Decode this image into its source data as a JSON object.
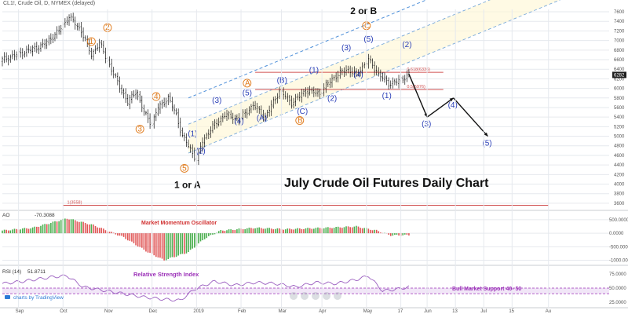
{
  "header": {
    "title": "CL1!, Crude Oil, D, NYMEX (delayed)"
  },
  "chart_data": [
    {
      "type": "candlestick",
      "title": "July Crude Oil Futures Daily Chart",
      "x_ticks": [
        "Sep",
        "Oct",
        "Nov",
        "Dec",
        "2019",
        "Feb",
        "Mar",
        "Apr",
        "May",
        "17",
        "Jun",
        "13",
        "Jul",
        "15",
        "Au"
      ],
      "y_ticks": [
        7600,
        7400,
        7200,
        7000,
        6800,
        6600,
        6400,
        6200,
        6000,
        5800,
        5600,
        5400,
        5200,
        5000,
        4800,
        4600,
        4400,
        4200,
        4000,
        3800,
        3600
      ],
      "ylim": [
        3500,
        7650
      ],
      "last_price": "6282",
      "anchors": [
        {
          "t": 0,
          "v": 6600
        },
        {
          "t": 10,
          "v": 6750
        },
        {
          "t": 20,
          "v": 6900
        },
        {
          "t": 28,
          "v": 7200
        },
        {
          "t": 33,
          "v": 7500
        },
        {
          "t": 39,
          "v": 7200
        },
        {
          "t": 44,
          "v": 6700
        },
        {
          "t": 48,
          "v": 6950
        },
        {
          "t": 55,
          "v": 6300
        },
        {
          "t": 62,
          "v": 5700
        },
        {
          "t": 66,
          "v": 5950
        },
        {
          "t": 70,
          "v": 5500
        },
        {
          "t": 74,
          "v": 5250
        },
        {
          "t": 77,
          "v": 5600
        },
        {
          "t": 82,
          "v": 5800
        },
        {
          "t": 86,
          "v": 5450
        },
        {
          "t": 89,
          "v": 5000
        },
        {
          "t": 92,
          "v": 4800
        },
        {
          "t": 96,
          "v": 4500
        },
        {
          "t": 99,
          "v": 4900
        },
        {
          "t": 104,
          "v": 5200
        },
        {
          "t": 110,
          "v": 5450
        },
        {
          "t": 117,
          "v": 5350
        },
        {
          "t": 124,
          "v": 5650
        },
        {
          "t": 130,
          "v": 5400
        },
        {
          "t": 137,
          "v": 5950
        },
        {
          "t": 143,
          "v": 5700
        },
        {
          "t": 150,
          "v": 5950
        },
        {
          "t": 157,
          "v": 5900
        },
        {
          "t": 163,
          "v": 6200
        },
        {
          "t": 170,
          "v": 6400
        },
        {
          "t": 175,
          "v": 6300
        },
        {
          "t": 181,
          "v": 6600
        },
        {
          "t": 186,
          "v": 6300
        },
        {
          "t": 191,
          "v": 6100
        },
        {
          "t": 196,
          "v": 6150
        },
        {
          "t": 201,
          "v": 6300
        }
      ],
      "fib_levels": [
        {
          "label": "0.618(6336)",
          "value": 6336
        },
        {
          "label": "0.5(5976)",
          "value": 5976
        },
        {
          "label": "1(3558)",
          "value": 3558
        }
      ],
      "projection": [
        {
          "t": 201,
          "v": 6300,
          "label": ""
        },
        {
          "t": 210,
          "v": 5400,
          "label": "(3)"
        },
        {
          "t": 223,
          "v": 5800,
          "label": "(4)"
        },
        {
          "t": 240,
          "v": 5000,
          "label": "(5)"
        }
      ],
      "annotations": {
        "orange": [
          {
            "t": 44,
            "v": 6930,
            "text": "1"
          },
          {
            "t": 52,
            "v": 7220,
            "text": "2"
          },
          {
            "t": 68,
            "v": 5100,
            "text": "3"
          },
          {
            "t": 76,
            "v": 5780,
            "text": "4"
          },
          {
            "t": 90,
            "v": 4280,
            "text": "5"
          },
          {
            "t": 121,
            "v": 6060,
            "text": "A"
          },
          {
            "t": 147,
            "v": 5280,
            "text": "B"
          },
          {
            "t": 180,
            "v": 7260,
            "text": "C"
          }
        ],
        "blue": [
          {
            "t": 94,
            "v": 5000,
            "text": "(1)"
          },
          {
            "t": 98,
            "v": 4640,
            "text": "(2)"
          },
          {
            "t": 106,
            "v": 5700,
            "text": "(3)"
          },
          {
            "t": 117,
            "v": 5260,
            "text": "(4)"
          },
          {
            "t": 121,
            "v": 5850,
            "text": "(5)"
          },
          {
            "t": 128,
            "v": 5330,
            "text": "(A)"
          },
          {
            "t": 138,
            "v": 6120,
            "text": "(B)"
          },
          {
            "t": 148,
            "v": 5470,
            "text": "(C)"
          },
          {
            "t": 154,
            "v": 6330,
            "text": "(1)"
          },
          {
            "t": 163,
            "v": 5740,
            "text": "(2)"
          },
          {
            "t": 170,
            "v": 6800,
            "text": "(3)"
          },
          {
            "t": 176,
            "v": 6230,
            "text": "(4)"
          },
          {
            "t": 181,
            "v": 6980,
            "text": "(5)"
          },
          {
            "t": 190,
            "v": 5800,
            "text": "(1)"
          },
          {
            "t": 200,
            "v": 6860,
            "text": "(2)"
          }
        ],
        "labels": [
          {
            "t": 92,
            "v": 3920,
            "text": "1 or A"
          },
          {
            "t": 179,
            "v": 7550,
            "text": "2 or B"
          }
        ]
      }
    },
    {
      "type": "bar",
      "title": "AO",
      "value_label": "-70.3088",
      "subtitle": "Market Momentum Oscillator",
      "y_ticks": [
        "500.0000",
        "0.0000",
        "-500.0000",
        "-1000.0000"
      ],
      "ylim": [
        -1100,
        700
      ],
      "anchors": [
        {
          "t": 0,
          "v": 100
        },
        {
          "t": 15,
          "v": 200
        },
        {
          "t": 32,
          "v": 550
        },
        {
          "t": 45,
          "v": 300
        },
        {
          "t": 60,
          "v": -150
        },
        {
          "t": 72,
          "v": -700
        },
        {
          "t": 80,
          "v": -1000
        },
        {
          "t": 92,
          "v": -700
        },
        {
          "t": 100,
          "v": -200
        },
        {
          "t": 108,
          "v": 100
        },
        {
          "t": 125,
          "v": 200
        },
        {
          "t": 140,
          "v": 150
        },
        {
          "t": 160,
          "v": 200
        },
        {
          "t": 175,
          "v": 250
        },
        {
          "t": 185,
          "v": 100
        },
        {
          "t": 192,
          "v": -80
        },
        {
          "t": 201,
          "v": -70
        }
      ]
    },
    {
      "type": "line",
      "title": "RSI (14)",
      "value_label": "51.8711",
      "subtitle": "Relative Strength Index",
      "support_label": "Bull Market Support 40- 50",
      "support_range": [
        40,
        50
      ],
      "y_ticks": [
        "75.0000",
        "50.0000",
        "25.0000"
      ],
      "ylim": [
        15,
        85
      ],
      "anchors": [
        {
          "t": 0,
          "v": 58
        },
        {
          "t": 10,
          "v": 62
        },
        {
          "t": 25,
          "v": 70
        },
        {
          "t": 32,
          "v": 72
        },
        {
          "t": 40,
          "v": 52
        },
        {
          "t": 50,
          "v": 46
        },
        {
          "t": 60,
          "v": 40
        },
        {
          "t": 70,
          "v": 34
        },
        {
          "t": 80,
          "v": 30
        },
        {
          "t": 88,
          "v": 28
        },
        {
          "t": 95,
          "v": 48
        },
        {
          "t": 105,
          "v": 62
        },
        {
          "t": 115,
          "v": 55
        },
        {
          "t": 125,
          "v": 60
        },
        {
          "t": 135,
          "v": 58
        },
        {
          "t": 145,
          "v": 52
        },
        {
          "t": 155,
          "v": 60
        },
        {
          "t": 165,
          "v": 58
        },
        {
          "t": 175,
          "v": 65
        },
        {
          "t": 181,
          "v": 72
        },
        {
          "t": 188,
          "v": 45
        },
        {
          "t": 195,
          "v": 48
        },
        {
          "t": 201,
          "v": 52
        }
      ]
    }
  ],
  "footer": {
    "brand": "charts by TradingView"
  },
  "colors": {
    "bull_candle": "#111111",
    "ao_up": "#4caf50",
    "ao_down": "#e05555",
    "rsi_line": "#9b5fc0",
    "channel": "#4d8fd9",
    "fib": "#d05050",
    "wave_orange": "#e07a1a",
    "wave_blue": "#2a3fb8"
  }
}
